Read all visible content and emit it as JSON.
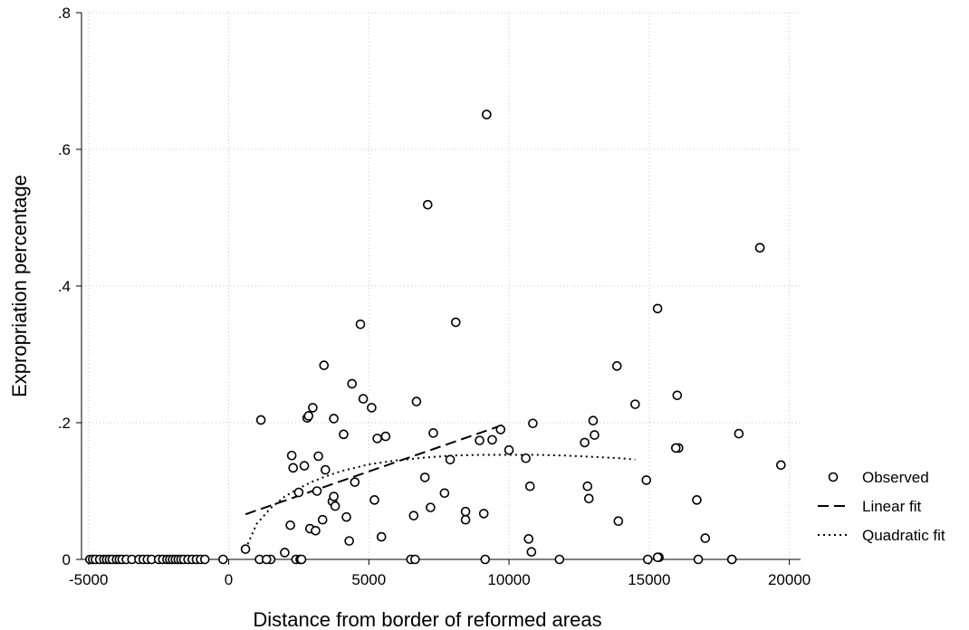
{
  "chart_data": {
    "type": "scatter",
    "xlabel": "Distance from border of reformed areas",
    "ylabel": "Expropriation percentage",
    "xlim": [
      -5250,
      20400
    ],
    "ylim": [
      0,
      0.8
    ],
    "xticks": [
      -5000,
      0,
      5000,
      10000,
      15000,
      20000
    ],
    "xtick_labels": [
      "-5000",
      "0",
      "5000",
      "10000",
      "15000",
      "20000"
    ],
    "yticks": [
      0,
      0.2,
      0.4,
      0.6,
      0.8
    ],
    "ytick_labels": [
      "0",
      ".2",
      ".4",
      ".6",
      ".8"
    ],
    "grid": true,
    "legend_position": "right",
    "series": [
      {
        "name": "Observed",
        "kind": "markers",
        "marker": "hollow-circle",
        "x": [
          -4950,
          -4850,
          -4750,
          -4600,
          -4450,
          -4350,
          -4250,
          -4150,
          -4000,
          -3900,
          -3800,
          -3650,
          -3450,
          -3200,
          -3050,
          -2900,
          -2750,
          -2500,
          -2350,
          -2200,
          -2100,
          -2000,
          -1900,
          -1800,
          -1700,
          -1600,
          -1450,
          -1300,
          -1150,
          -1000,
          -850,
          -200,
          600,
          1150,
          1500,
          2000,
          2200,
          2250,
          2300,
          2400,
          2500,
          2550,
          2600,
          2700,
          2800,
          2850,
          2900,
          3000,
          3100,
          3150,
          3200,
          3350,
          3400,
          3450,
          3700,
          3750,
          3750,
          3800,
          4100,
          4200,
          4300,
          4400,
          4500,
          4700,
          4800,
          5100,
          5200,
          5300,
          5450,
          5600,
          6500,
          6600,
          6700,
          7000,
          7100,
          7200,
          7300,
          7700,
          7900,
          8100,
          8450,
          8450,
          8950,
          9100,
          9150,
          9400,
          9700,
          10000,
          10600,
          10700,
          10750,
          10800,
          10850,
          11800,
          12700,
          12800,
          12850,
          13000,
          13050,
          13850,
          13900,
          14500,
          14900,
          14950,
          15300,
          15350,
          16000,
          16050,
          16700,
          16750,
          17000,
          17950,
          18200,
          18950,
          19700,
          1100,
          1350,
          6650,
          9200,
          15300,
          15950,
          17950,
          18950,
          9200
        ],
        "y": [
          0,
          0,
          0,
          0,
          0,
          0,
          0,
          0,
          0,
          0,
          0,
          0,
          0,
          0,
          0,
          0,
          0,
          0,
          0,
          0,
          0,
          0,
          0,
          0,
          0,
          0,
          0,
          0,
          0,
          0,
          0,
          0,
          0.015,
          0.204,
          0,
          0.01,
          0.05,
          0.152,
          0.134,
          0.0,
          0.098,
          0,
          0.0,
          0.137,
          0.207,
          0.21,
          0.045,
          0.222,
          0.042,
          0.1,
          0.151,
          0.058,
          0.284,
          0.131,
          0.085,
          0.206,
          0.092,
          0.078,
          0.183,
          0.062,
          0.027,
          0.257,
          0.113,
          0.344,
          0.235,
          0.222,
          0.087,
          0.177,
          0.033,
          0.18,
          0,
          0.064,
          0.231,
          0.12,
          0.519,
          0.076,
          0.185,
          0.097,
          0.146,
          0.347,
          0.07,
          0.058,
          0.174,
          0.067,
          0,
          0.175,
          0.19,
          0.16,
          0.148,
          0.03,
          0.107,
          0.011,
          0.199,
          0,
          0.171,
          0.107,
          0.089,
          0.203,
          0.182,
          0.283,
          0.056,
          0.227,
          0.116,
          0,
          0.367,
          0.003,
          0.24,
          0.163,
          0.087,
          0,
          0.031,
          0,
          0.184,
          0.456,
          0.138,
          0,
          0,
          0,
          0.651,
          0.003,
          0.163,
          0,
          0.456,
          0.651
        ]
      },
      {
        "name": "Linear fit",
        "kind": "line",
        "style": "dashed",
        "x": [
          600,
          9800
        ],
        "y": [
          0.066,
          0.197
        ]
      },
      {
        "name": "Quadratic fit",
        "kind": "line",
        "style": "dotted",
        "x": [
          600,
          1000,
          1500,
          2000,
          2500,
          3000,
          3500,
          4000,
          5000,
          6000,
          7000,
          8000,
          9000,
          10000,
          11000,
          12000,
          13000,
          14000,
          14500
        ],
        "y": [
          0.015,
          0.052,
          0.075,
          0.092,
          0.104,
          0.114,
          0.122,
          0.129,
          0.139,
          0.145,
          0.149,
          0.152,
          0.153,
          0.153,
          0.153,
          0.152,
          0.15,
          0.148,
          0.146
        ]
      }
    ]
  }
}
